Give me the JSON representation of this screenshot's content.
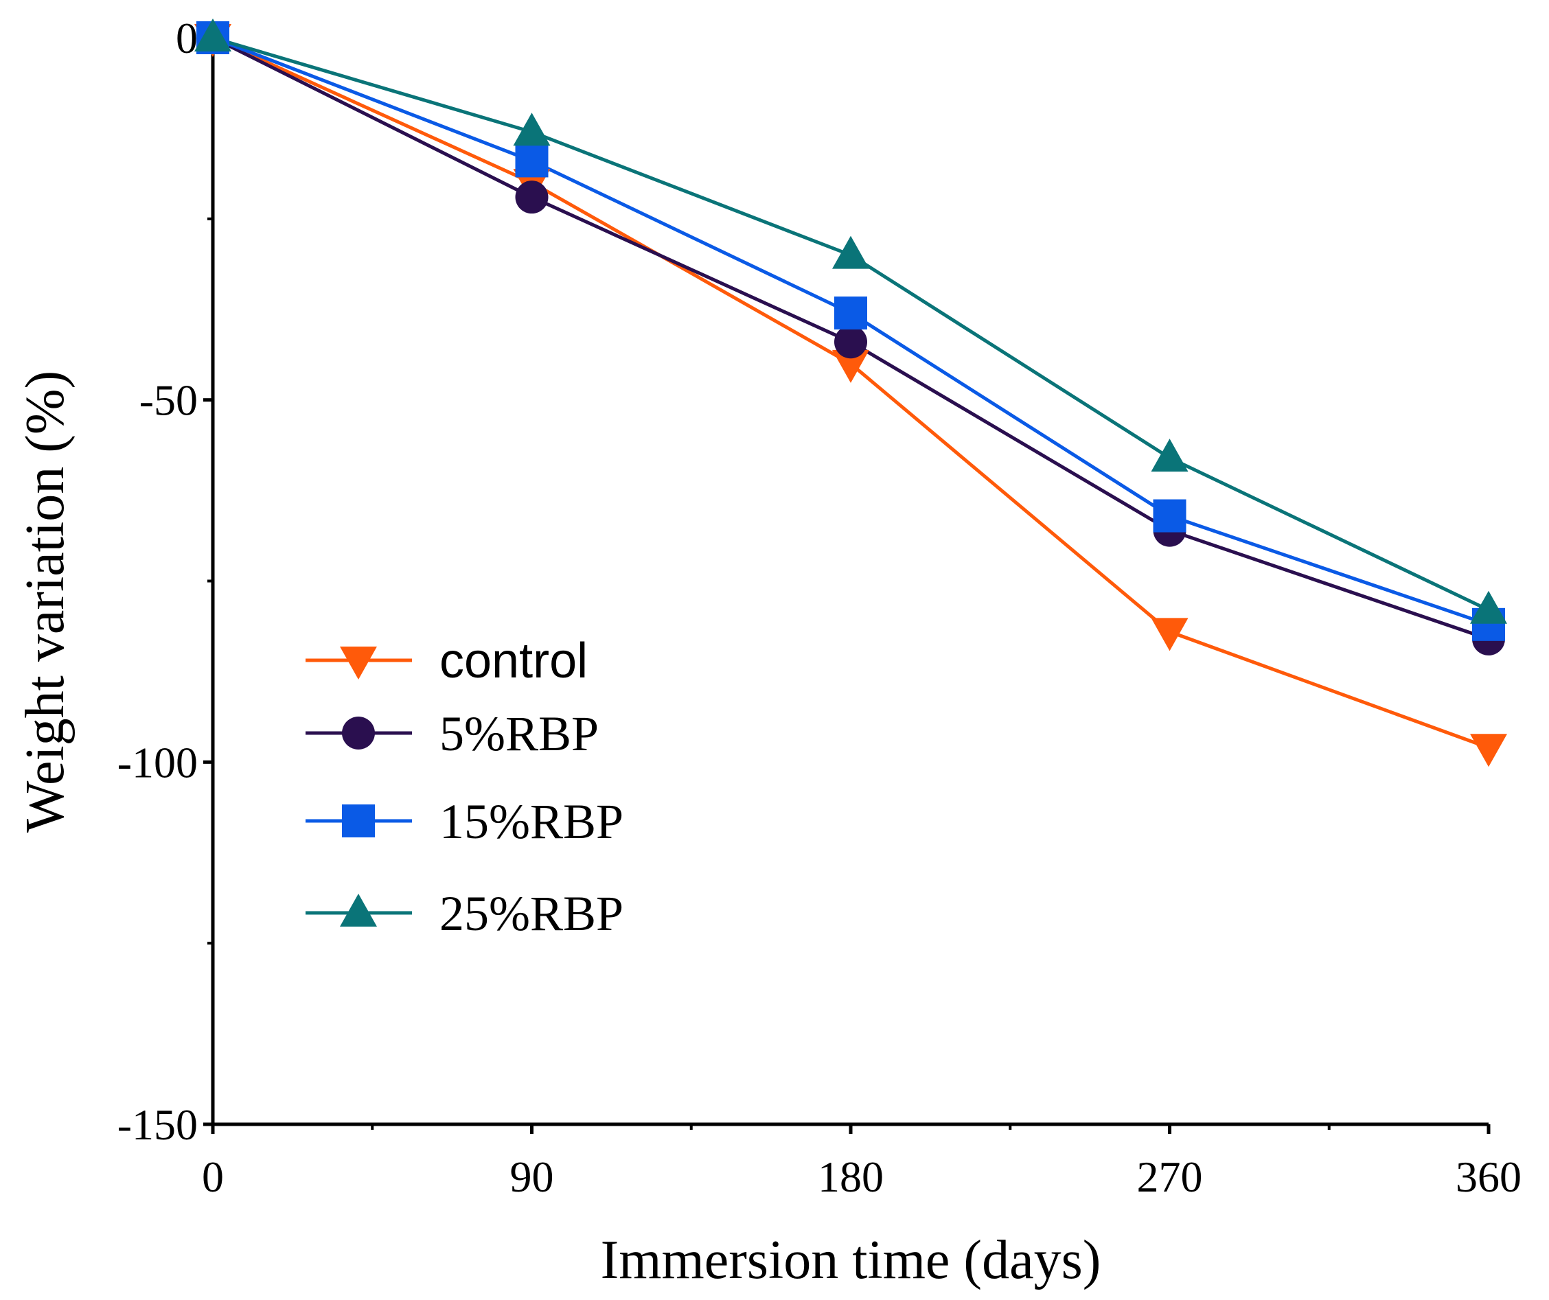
{
  "chart_data": {
    "type": "line",
    "title": "",
    "xlabel": "Immersion time (days)",
    "ylabel": "Weight variation (%)",
    "x": [
      0,
      90,
      180,
      270,
      360
    ],
    "xticks": [
      "0",
      "90",
      "180",
      "270",
      "360"
    ],
    "yticks": [
      "0",
      "-50",
      "-100",
      "-150"
    ],
    "xlim": [
      0,
      360
    ],
    "ylim": [
      -150,
      0
    ],
    "grid": false,
    "legend_position": "lower-left",
    "series": [
      {
        "name": "control",
        "marker": "triangle-down",
        "color": "#ff5a0a",
        "values": [
          0,
          -20,
          -45,
          -82,
          -98
        ]
      },
      {
        "name": "5%RBP",
        "marker": "circle",
        "color": "#2a0f4f",
        "values": [
          0,
          -22,
          -42,
          -68,
          -83
        ]
      },
      {
        "name": "15%RBP",
        "marker": "square",
        "color": "#0a5ae6",
        "values": [
          0,
          -17,
          -38,
          -66,
          -81
        ]
      },
      {
        "name": "25%RBP",
        "marker": "triangle-up",
        "color": "#0a7478",
        "values": [
          0,
          -13,
          -30,
          -58,
          -79
        ]
      }
    ]
  }
}
